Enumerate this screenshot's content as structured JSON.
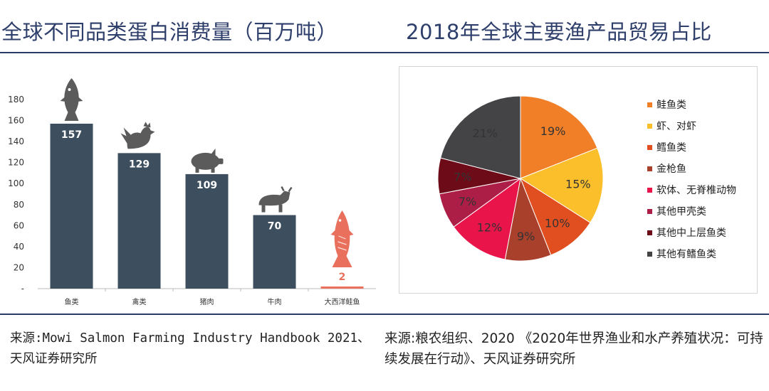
{
  "header": {
    "left_title": "全球不同品类蛋白消费量（百万吨）",
    "right_title": "2018年全球主要渔产品贸易占比"
  },
  "colors": {
    "rule": "#2d3b67",
    "bar": "#3d4f5e",
    "salmon_bar": "#e8705c"
  },
  "chart_data": [
    {
      "type": "bar",
      "title": "",
      "categories": [
        "鱼类",
        "禽类",
        "猪肉",
        "牛肉",
        "大西洋鲑鱼"
      ],
      "values": [
        157,
        129,
        109,
        70,
        2
      ],
      "data_labels": [
        "157",
        "129",
        "109",
        "70",
        "2"
      ],
      "icons": [
        "fish-icon",
        "rooster-icon",
        "pig-icon",
        "cow-icon",
        "salmon-icon"
      ],
      "ylim": [
        0,
        180
      ],
      "yticks": [
        0,
        20,
        40,
        60,
        80,
        100,
        120,
        140,
        160,
        180
      ],
      "ytick_labels": [
        "-",
        "20",
        "40",
        "60",
        "80",
        "100",
        "120",
        "140",
        "160",
        "180"
      ],
      "xlabel": "",
      "ylabel": "",
      "grid": false
    },
    {
      "type": "pie",
      "title": "",
      "slices": [
        {
          "name": "鲑鱼类",
          "value": 19,
          "label": "19%",
          "color": "#f07f28"
        },
        {
          "name": "虾、对虾",
          "value": 15,
          "label": "15%",
          "color": "#fbbf2c"
        },
        {
          "name": "鳕鱼类",
          "value": 10,
          "label": "10%",
          "color": "#e14e1f"
        },
        {
          "name": "金枪鱼",
          "value": 9,
          "label": "9%",
          "color": "#a8402c"
        },
        {
          "name": "软体、无脊椎动物",
          "value": 12,
          "label": "12%",
          "color": "#e8144a"
        },
        {
          "name": "其他甲壳类",
          "value": 7,
          "label": "7%",
          "color": "#ad1e47"
        },
        {
          "name": "其他中上层鱼类",
          "value": 7,
          "label": "7%",
          "color": "#6d0c18"
        },
        {
          "name": "其他有鳍鱼类",
          "value": 21,
          "label": "21%",
          "color": "#444446"
        }
      ],
      "legend_position": "right"
    }
  ],
  "sources": {
    "left": "来源:Mowi Salmon Farming Industry Handbook 2021、天风证券研究所",
    "right": "来源:粮农组织、2020 《2020年世界渔业和水产养殖状况：可持续发展在行动》、天风证券研究所"
  }
}
